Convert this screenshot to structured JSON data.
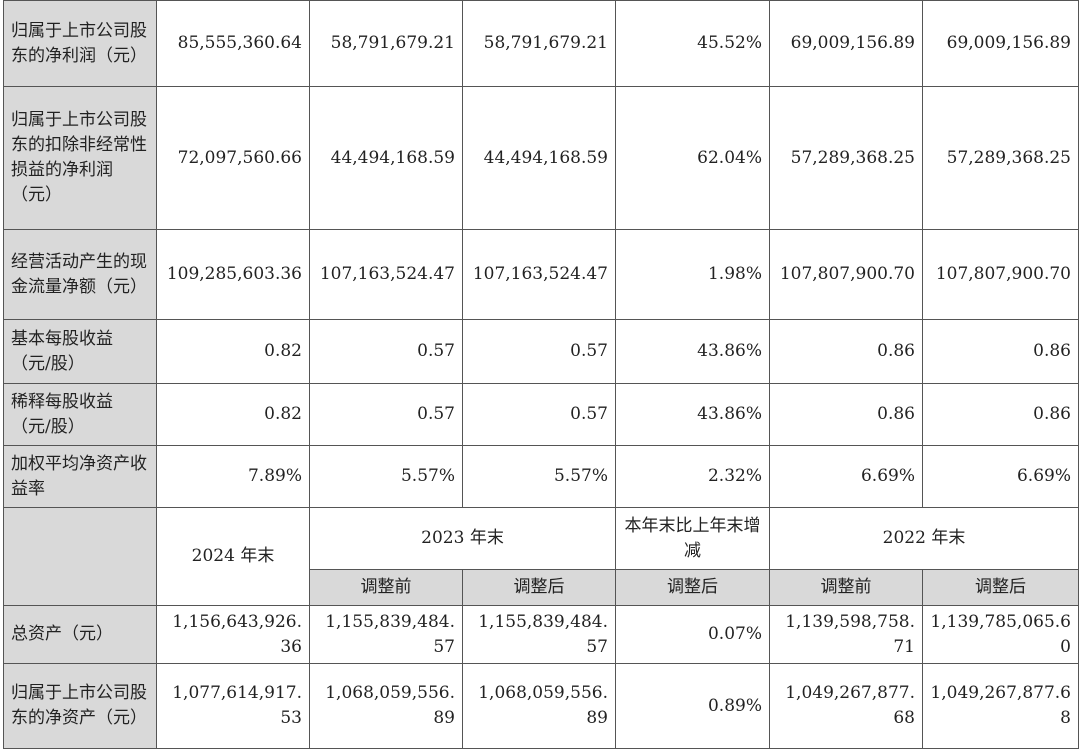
{
  "rows_top": [
    {
      "label": "归属于上市公司股东的净利润（元）",
      "values": [
        "85,555,360.64",
        "58,791,679.21",
        "58,791,679.21",
        "45.52%",
        "69,009,156.89",
        "69,009,156.89"
      ]
    },
    {
      "label": "归属于上市公司股东的扣除非经常性损益的净利润（元）",
      "values": [
        "72,097,560.66",
        "44,494,168.59",
        "44,494,168.59",
        "62.04%",
        "57,289,368.25",
        "57,289,368.25"
      ]
    },
    {
      "label": "经营活动产生的现金流量净额（元）",
      "values": [
        "109,285,603.36",
        "107,163,524.47",
        "107,163,524.47",
        "1.98%",
        "107,807,900.70",
        "107,807,900.70"
      ]
    },
    {
      "label": "基本每股收益（元/股）",
      "values": [
        "0.82",
        "0.57",
        "0.57",
        "43.86%",
        "0.86",
        "0.86"
      ]
    },
    {
      "label": "稀释每股收益（元/股）",
      "values": [
        "0.82",
        "0.57",
        "0.57",
        "43.86%",
        "0.86",
        "0.86"
      ]
    },
    {
      "label": "加权平均净资产收益率",
      "values": [
        "7.89%",
        "5.57%",
        "5.57%",
        "2.32%",
        "6.69%",
        "6.69%"
      ]
    }
  ],
  "header": {
    "col_2024": "2024 年末",
    "col_2023": "2023 年末",
    "col_change": "本年末比上年末增减",
    "col_2022": "2022 年末",
    "sub_before_2023": "调整前",
    "sub_after_2023": "调整后",
    "sub_after_change": "调整后",
    "sub_before_2022": "调整前",
    "sub_after_2022": "调整后"
  },
  "rows_bottom": [
    {
      "label": "总资产（元）",
      "values": [
        "1,156,643,926.36",
        "1,155,839,484.57",
        "1,155,839,484.57",
        "0.07%",
        "1,139,598,758.71",
        "1,139,785,065.60"
      ]
    },
    {
      "label": "归属于上市公司股东的净资产（元）",
      "values": [
        "1,077,614,917.53",
        "1,068,059,556.89",
        "1,068,059,556.89",
        "0.89%",
        "1,049,267,877.68",
        "1,049,267,877.68"
      ]
    }
  ]
}
